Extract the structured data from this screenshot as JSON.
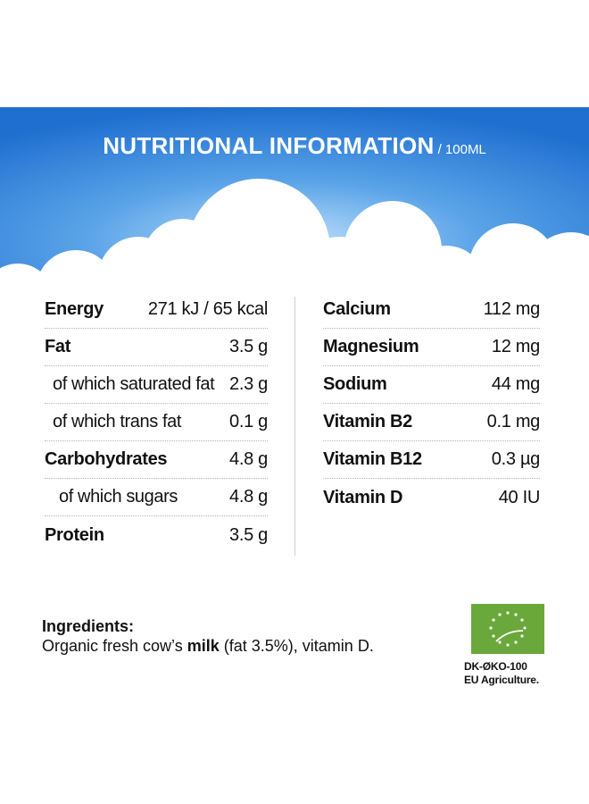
{
  "header": {
    "title": "NUTRITIONAL INFORMATION",
    "per": "/ 100ML",
    "colors": {
      "sky_top": "#1e6fd0",
      "sky_mid": "#5aa3e8",
      "sky_glow": "#bfe0fb",
      "cloud": "#ffffff"
    }
  },
  "nutrition_left": [
    {
      "label": "Energy",
      "value": "271 kJ / 65 kcal"
    },
    {
      "label": "Fat",
      "value": "3.5 g"
    },
    {
      "label": "of which saturated fat",
      "value": "2.3 g"
    },
    {
      "label": "of which trans fat",
      "value": "0.1 g"
    },
    {
      "label": "Carbohydrates",
      "value": "4.8 g"
    },
    {
      "label": "of which sugars",
      "value": "4.8 g"
    },
    {
      "label": "Protein",
      "value": "3.5 g"
    }
  ],
  "nutrition_right": [
    {
      "label": "Calcium",
      "value": "112 mg"
    },
    {
      "label": "Magnesium",
      "value": "12 mg"
    },
    {
      "label": "Sodium",
      "value": "44 mg"
    },
    {
      "label": "Vitamin B2",
      "value": "0.1 mg"
    },
    {
      "label": "Vitamin B12",
      "value": "0.3 µg"
    },
    {
      "label": "Vitamin D",
      "value": "40 IU"
    }
  ],
  "ingredients": {
    "heading": "Ingredients:",
    "text_before": "Organic fresh cow’s ",
    "text_bold": "milk",
    "text_after": " (fat 3.5%), vitamin D."
  },
  "certification": {
    "icon": "eu-organic-leaf-icon",
    "logo_color": "#6aa83b",
    "code": "DK-ØKO-100",
    "origin": "EU Agriculture."
  }
}
